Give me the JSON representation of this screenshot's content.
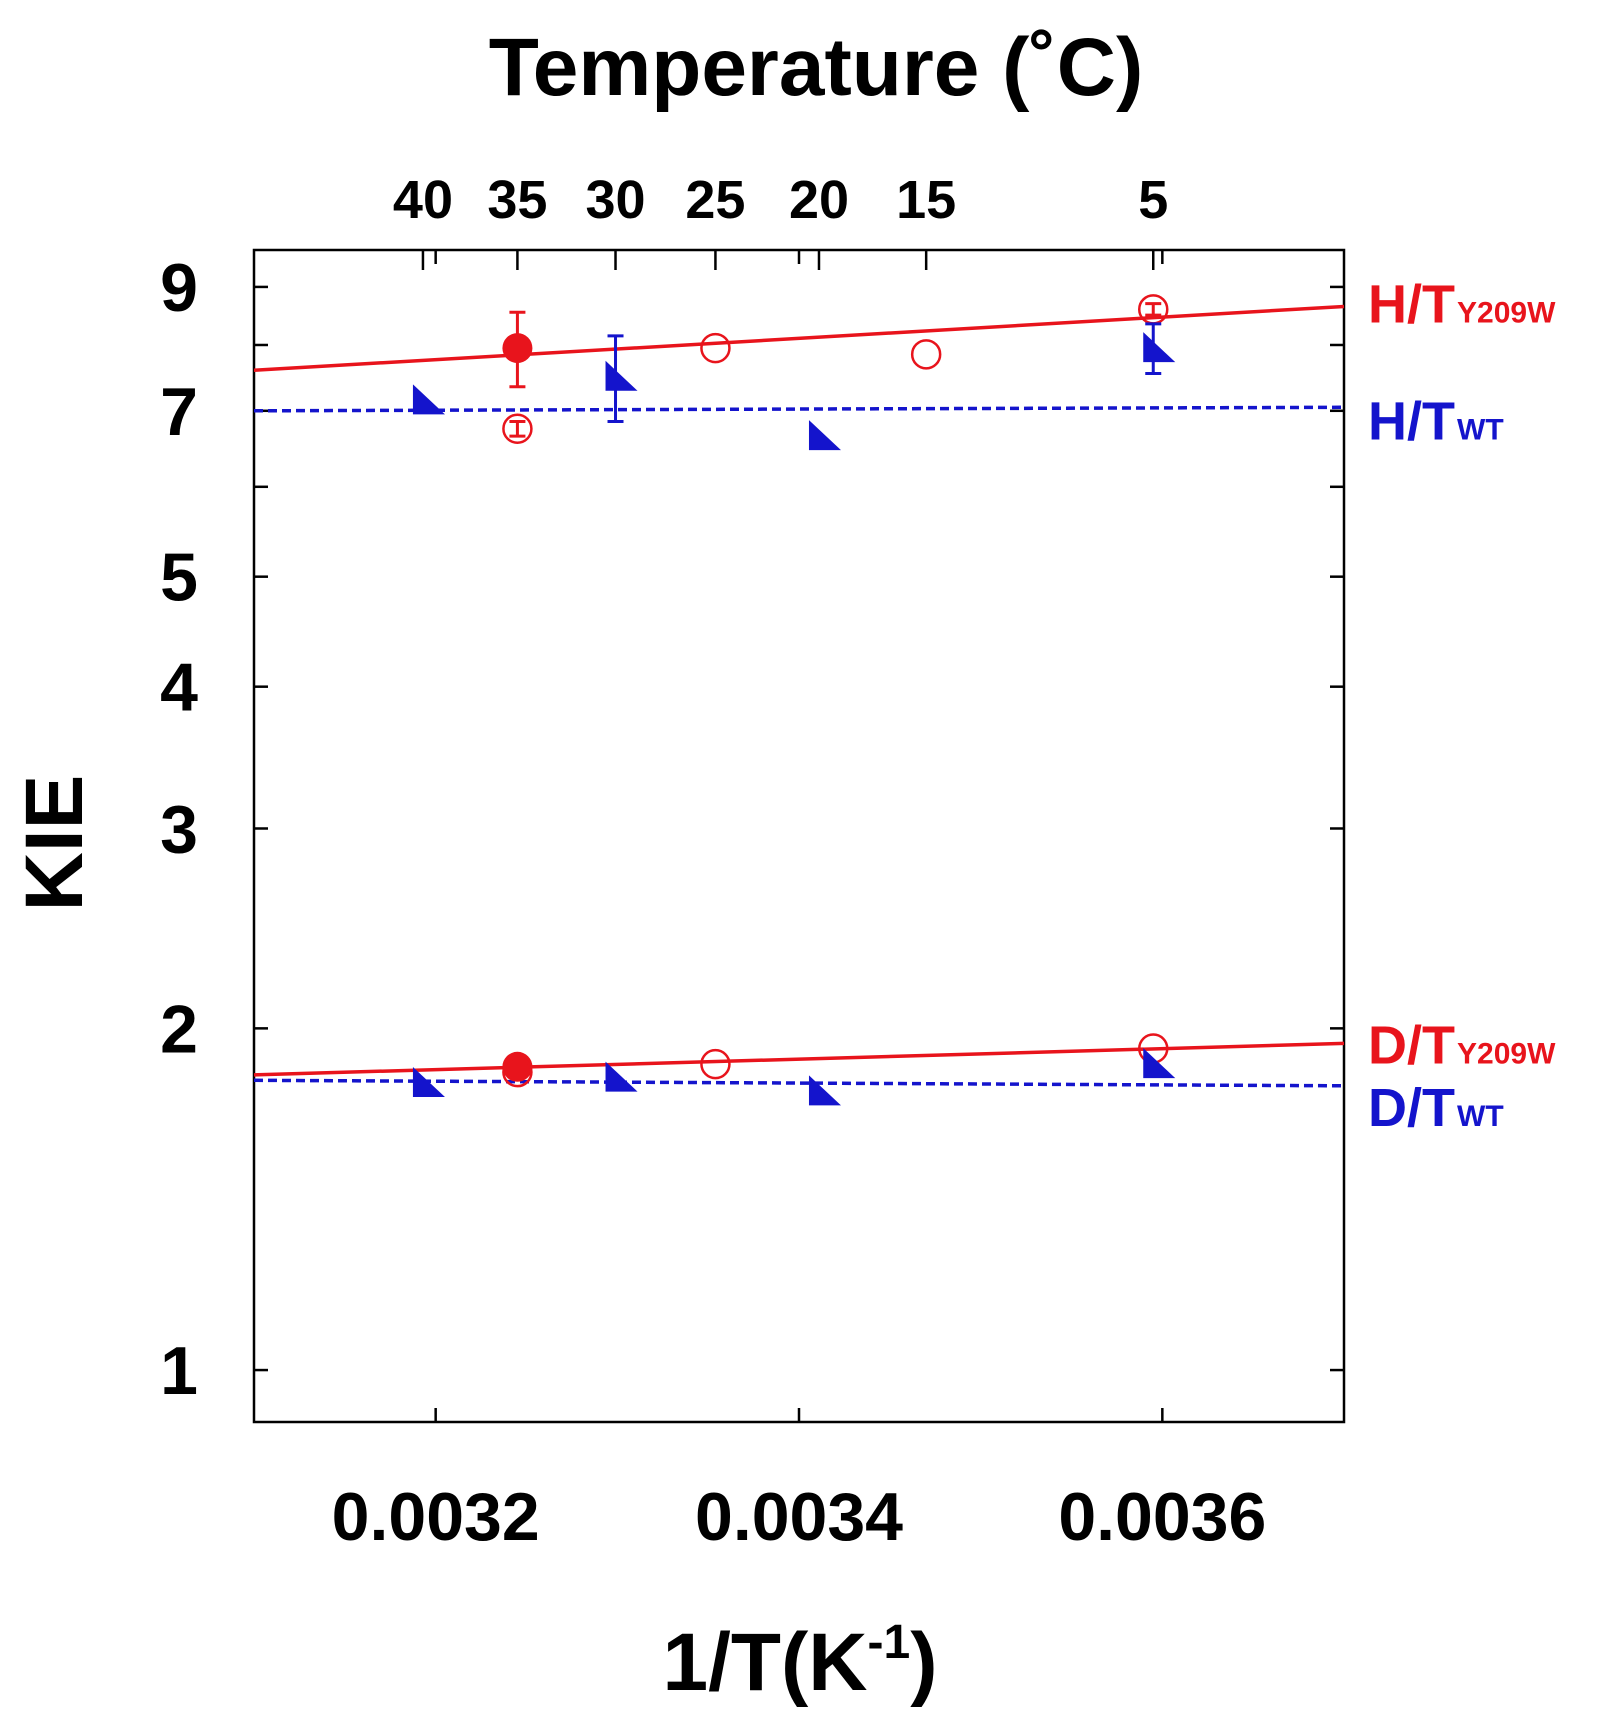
{
  "chart_data": {
    "type": "scatter",
    "title": "",
    "xlabel": "1/T(K",
    "xlabel_sup": "-1",
    "xlabel_close": ")",
    "ylabel": "KIE",
    "y_scale": "log",
    "xlim": [
      0.0031,
      0.0037
    ],
    "ylim": [
      0.9,
      9.7
    ],
    "x_ticks": [
      {
        "value": 0.0032,
        "label": "0.0032"
      },
      {
        "value": 0.0034,
        "label": "0.0034"
      },
      {
        "value": 0.0036,
        "label": "0.0036"
      }
    ],
    "y_ticks": [
      {
        "value": 1,
        "label": "1"
      },
      {
        "value": 2,
        "label": "2"
      },
      {
        "value": 3,
        "label": "3"
      },
      {
        "value": 4,
        "label": "4"
      },
      {
        "value": 5,
        "label": "5"
      },
      {
        "value": 6,
        "label": ""
      },
      {
        "value": 7,
        "label": "7"
      },
      {
        "value": 8,
        "label": ""
      },
      {
        "value": 9,
        "label": "9"
      }
    ],
    "top_axis": {
      "label": "Temperature (˚C)",
      "ticks": [
        {
          "value": 0.003193,
          "label": "40"
        },
        {
          "value": 0.003245,
          "label": "35"
        },
        {
          "value": 0.003299,
          "label": "30"
        },
        {
          "value": 0.003354,
          "label": "25"
        },
        {
          "value": 0.003411,
          "label": "20"
        },
        {
          "value": 0.00347,
          "label": "15"
        },
        {
          "value": 0.003595,
          "label": "5"
        }
      ]
    },
    "series": [
      {
        "name": "H/T Y209W",
        "label_main": "H/T",
        "label_sub": "Y209W",
        "color": "#e8141c",
        "fit": {
          "style": "solid",
          "x": [
            0.0031,
            0.0037
          ],
          "y": [
            7.6,
            8.65
          ]
        },
        "points": [
          {
            "x": 0.003245,
            "y": 7.95,
            "err": 0.6,
            "marker": "filled-circle"
          },
          {
            "x": 0.003245,
            "y": 6.75,
            "err": 0.1,
            "marker": "open-circle"
          },
          {
            "x": 0.003354,
            "y": 7.95,
            "err": 0,
            "marker": "open-circle"
          },
          {
            "x": 0.00347,
            "y": 7.85,
            "err": 0,
            "marker": "open-circle"
          },
          {
            "x": 0.003595,
            "y": 8.6,
            "err": 0.1,
            "marker": "open-circle"
          }
        ]
      },
      {
        "name": "H/T WT",
        "label_main": "H/T",
        "label_sub": "WT",
        "color": "#1414cc",
        "fit": {
          "style": "dashed",
          "x": [
            0.0031,
            0.0037
          ],
          "y": [
            7.0,
            7.05
          ]
        },
        "points": [
          {
            "x": 0.003193,
            "y": 7.15,
            "err": 0,
            "marker": "filled-triangle"
          },
          {
            "x": 0.003299,
            "y": 7.5,
            "err": 0.65,
            "marker": "filled-triangle"
          },
          {
            "x": 0.003411,
            "y": 6.65,
            "err": 0,
            "marker": "filled-triangle"
          },
          {
            "x": 0.003595,
            "y": 7.95,
            "err": 0.4,
            "marker": "filled-triangle"
          }
        ]
      },
      {
        "name": "D/T Y209W",
        "label_main": "D/T",
        "label_sub": "Y209W",
        "color": "#e8141c",
        "fit": {
          "style": "solid",
          "x": [
            0.0031,
            0.0037
          ],
          "y": [
            1.82,
            1.94
          ]
        },
        "points": [
          {
            "x": 0.003245,
            "y": 1.85,
            "err": 0,
            "marker": "filled-circle"
          },
          {
            "x": 0.003245,
            "y": 1.83,
            "err": 0,
            "marker": "open-circle"
          },
          {
            "x": 0.003354,
            "y": 1.86,
            "err": 0,
            "marker": "open-circle"
          },
          {
            "x": 0.003595,
            "y": 1.92,
            "err": 0,
            "marker": "open-circle"
          }
        ]
      },
      {
        "name": "D/T WT",
        "label_main": "D/T",
        "label_sub": "WT",
        "color": "#1414cc",
        "fit": {
          "style": "dashed",
          "x": [
            0.0031,
            0.0037
          ],
          "y": [
            1.8,
            1.78
          ]
        },
        "points": [
          {
            "x": 0.003193,
            "y": 1.79,
            "err": 0,
            "marker": "filled-triangle"
          },
          {
            "x": 0.003299,
            "y": 1.81,
            "err": 0,
            "marker": "filled-triangle"
          },
          {
            "x": 0.003411,
            "y": 1.76,
            "err": 0,
            "marker": "filled-triangle"
          },
          {
            "x": 0.003595,
            "y": 1.86,
            "err": 0,
            "marker": "filled-triangle"
          }
        ]
      }
    ]
  }
}
